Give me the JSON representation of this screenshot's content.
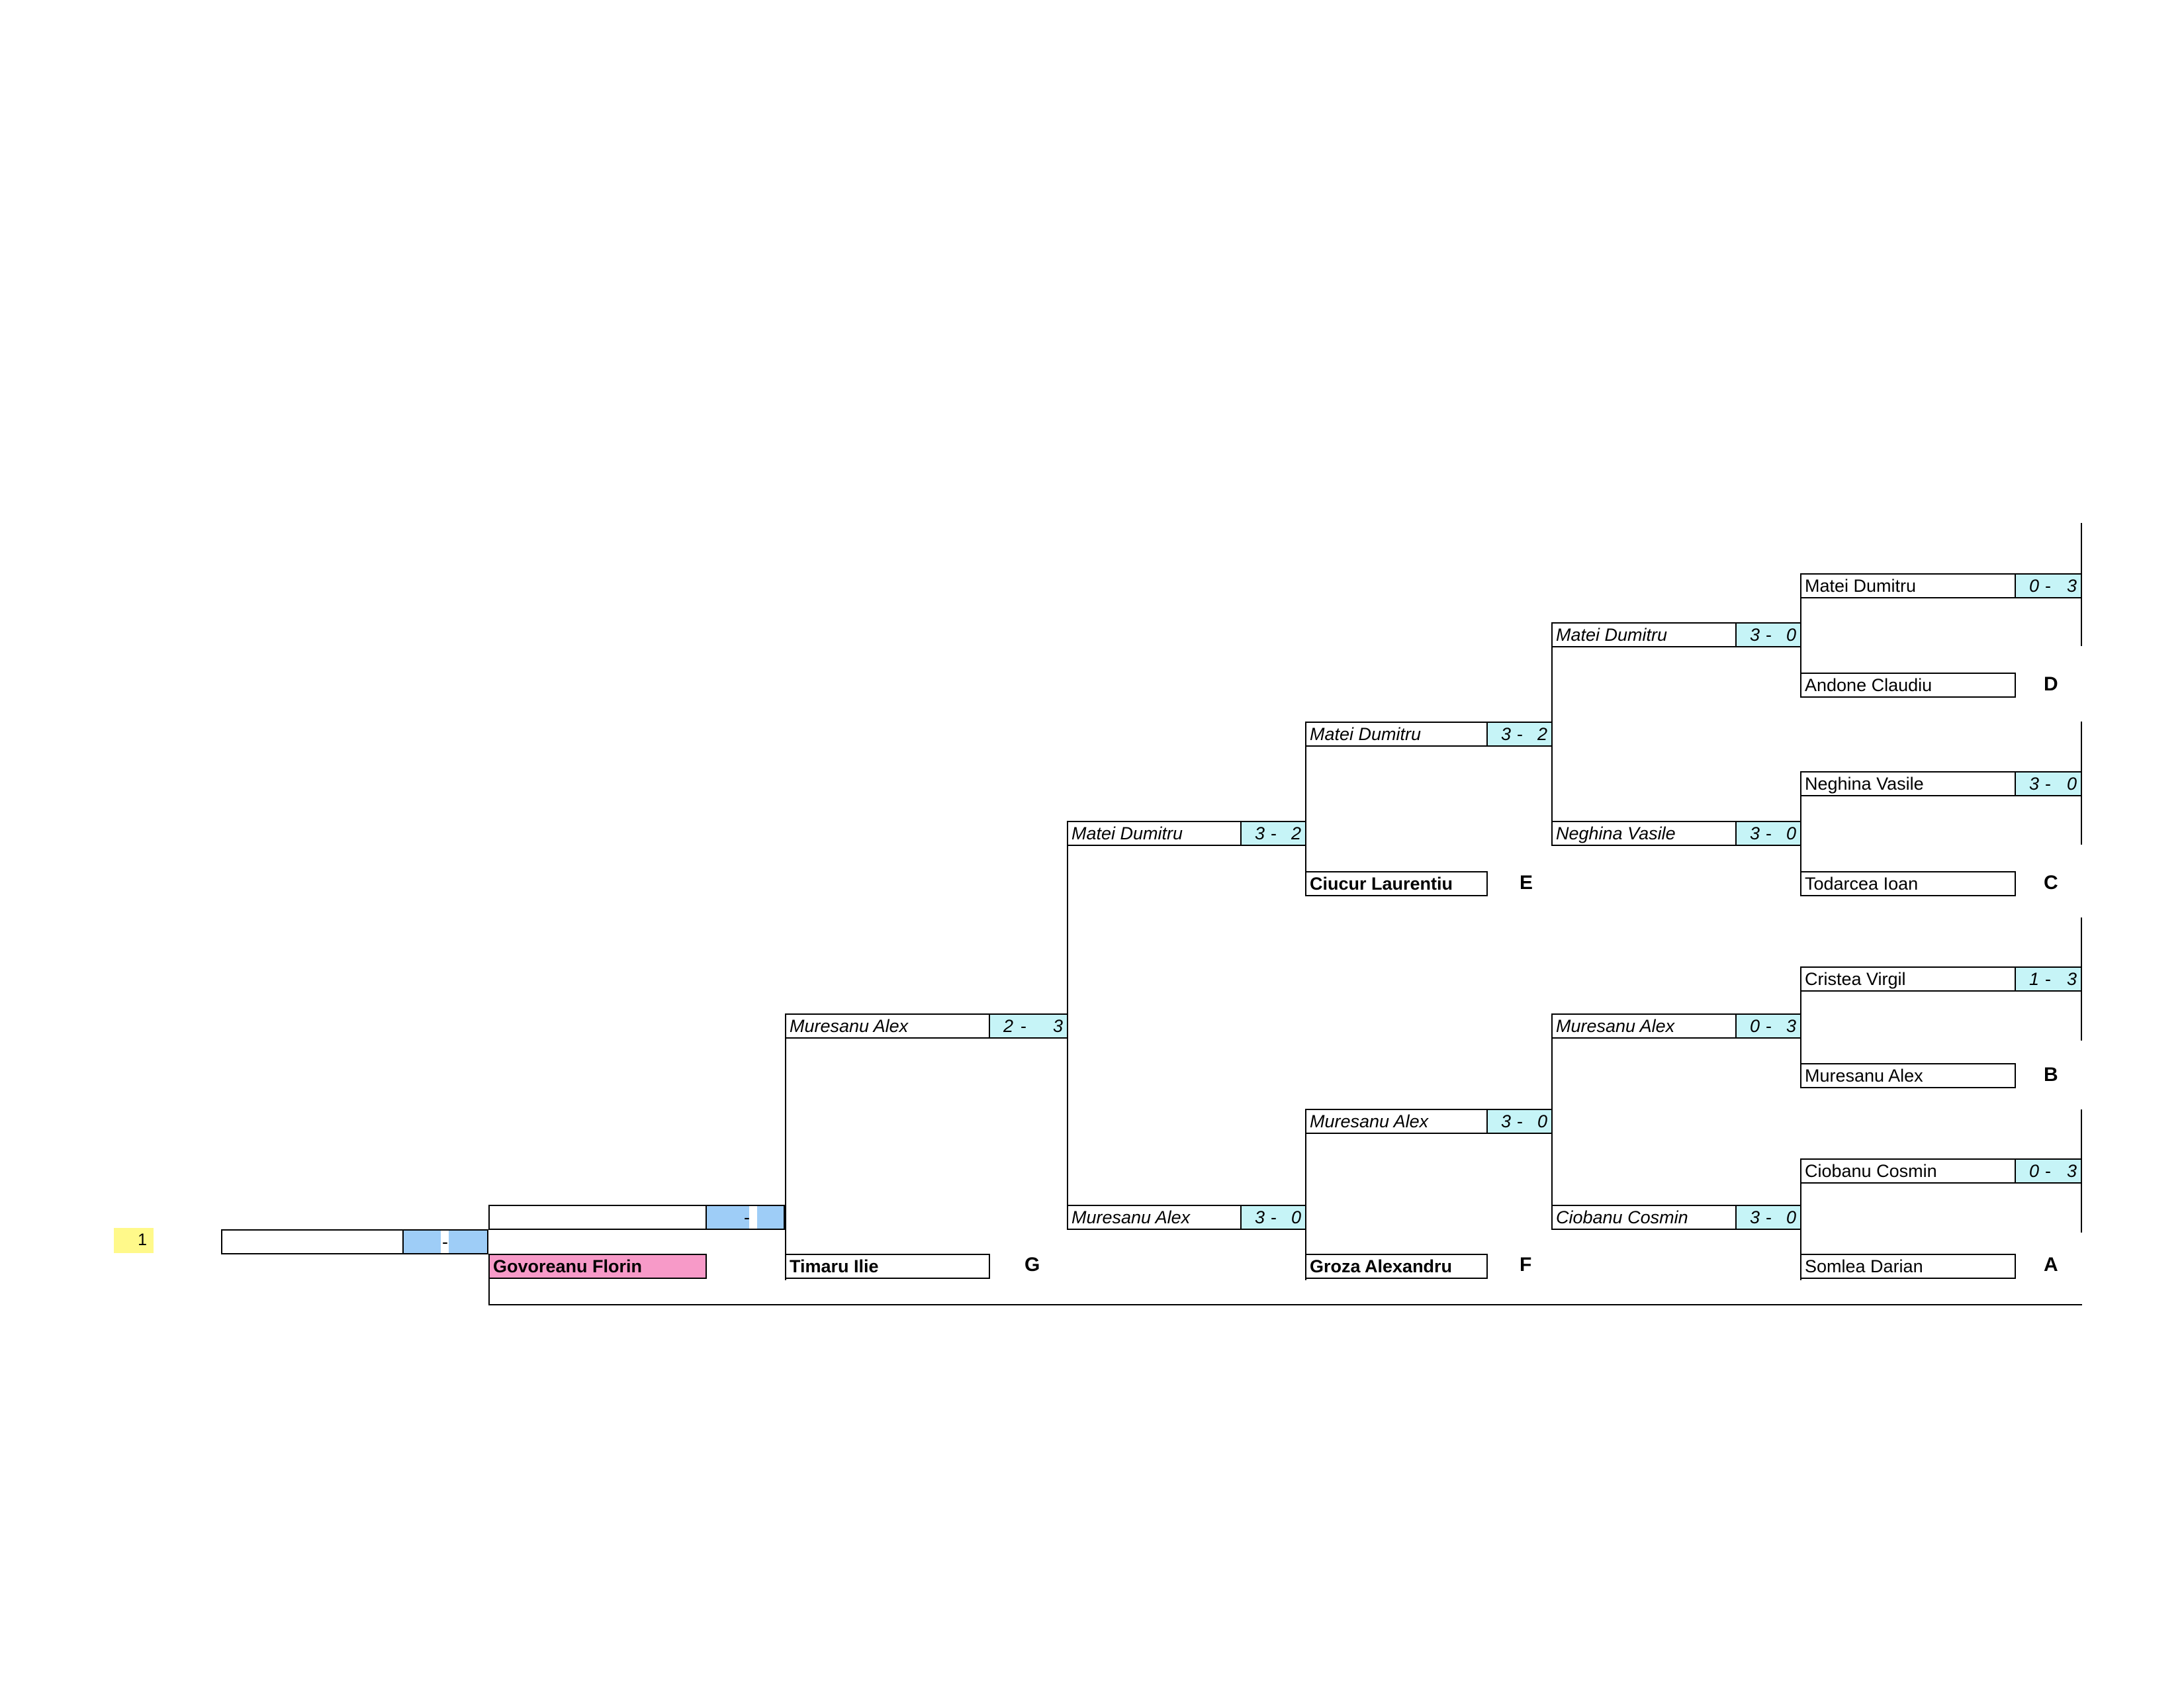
{
  "seed_number": "1",
  "final": {
    "top_player": "",
    "score_dash": "-",
    "bottom_player": "Govoreanu Florin",
    "left_player": "",
    "left_score_dash": "-"
  },
  "round_g": {
    "top_player": "Muresanu Alex",
    "top_score": [
      "2",
      "-",
      "3"
    ],
    "bottom_player": "Timaru Ilie",
    "tag": "G"
  },
  "round_4": {
    "top_player": "Matei Dumitru",
    "top_score": [
      "3",
      "-",
      "2"
    ],
    "bottom_player": "Muresanu Alex",
    "bottom_score": [
      "3",
      "-",
      "0"
    ]
  },
  "round_e": {
    "top_player": "Matei Dumitru",
    "top_score": [
      "3",
      "-",
      "2"
    ],
    "bottom_player": "Ciucur Laurentiu",
    "tag": "E"
  },
  "round_f": {
    "top_player": "Muresanu Alex",
    "top_score": [
      "3",
      "-",
      "0"
    ],
    "bottom_player": "Groza Alexandru",
    "tag": "F"
  },
  "round_2": [
    {
      "player": "Matei Dumitru",
      "score": [
        "3",
        "-",
        "0"
      ]
    },
    {
      "player": "Neghina Vasile",
      "score": [
        "3",
        "-",
        "0"
      ]
    },
    {
      "player": "Muresanu Alex",
      "score": [
        "0",
        "-",
        "3"
      ]
    },
    {
      "player": "Ciobanu Cosmin",
      "score": [
        "3",
        "-",
        "0"
      ]
    }
  ],
  "round_1": [
    {
      "top": "Matei Dumitru",
      "score": [
        "0",
        "-",
        "3"
      ],
      "bottom": "Andone Claudiu",
      "tag": "D"
    },
    {
      "top": "Neghina Vasile",
      "score": [
        "3",
        "-",
        "0"
      ],
      "bottom": "Todarcea Ioan",
      "tag": "C"
    },
    {
      "top": "Cristea Virgil",
      "score": [
        "1",
        "-",
        "3"
      ],
      "bottom": "Muresanu Alex",
      "tag": "B"
    },
    {
      "top": "Ciobanu Cosmin",
      "score": [
        "0",
        "-",
        "3"
      ],
      "bottom": "Somlea Darian",
      "tag": "A"
    }
  ]
}
